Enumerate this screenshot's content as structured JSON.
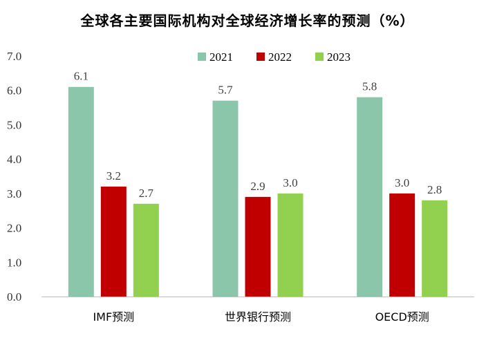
{
  "chart_data": {
    "type": "bar",
    "title": "全球各主要国际机构对全球经济增长率的预测（%）",
    "categories": [
      "IMF预测",
      "世界银行预测",
      "OECD预测"
    ],
    "series": [
      {
        "name": "2021",
        "values": [
          6.1,
          5.7,
          5.8
        ],
        "color": "#8cc6aa"
      },
      {
        "name": "2022",
        "values": [
          3.2,
          2.9,
          3.0
        ],
        "color": "#c00000"
      },
      {
        "name": "2023",
        "values": [
          2.7,
          3.0,
          2.8
        ],
        "color": "#92d050"
      }
    ],
    "ylim": [
      0,
      7
    ],
    "y_ticks": [
      "0.0",
      "1.0",
      "2.0",
      "3.0",
      "4.0",
      "5.0",
      "6.0",
      "7.0"
    ],
    "data_labels": [
      [
        "6.1",
        "5.7",
        "5.8"
      ],
      [
        "3.2",
        "2.9",
        "3.0"
      ],
      [
        "2.7",
        "3.0",
        "2.8"
      ]
    ],
    "xlabel": "",
    "ylabel": "",
    "grid": false,
    "legend_position": "top"
  }
}
